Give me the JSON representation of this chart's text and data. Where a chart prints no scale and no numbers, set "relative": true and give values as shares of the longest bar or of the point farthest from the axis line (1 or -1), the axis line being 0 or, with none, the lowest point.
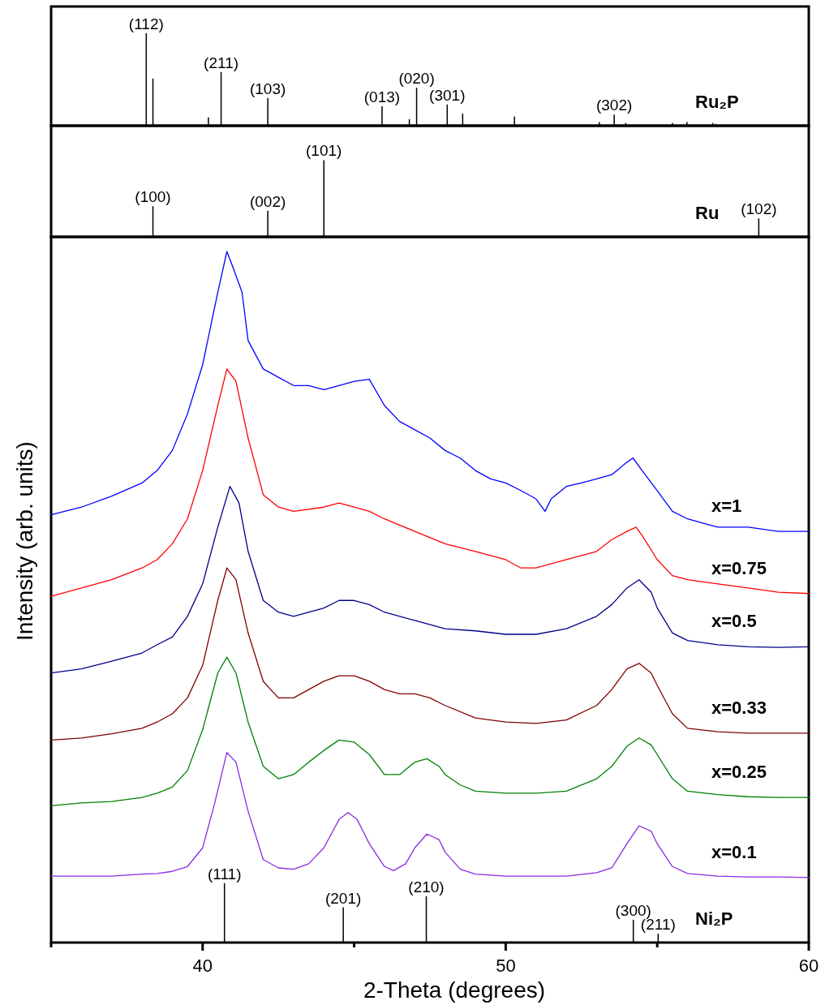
{
  "chart_data": [
    {
      "type": "bar",
      "relative": true,
      "xlim": [
        35,
        60
      ],
      "annotations": [
        {
          "text": "(112)",
          "x": 38.14,
          "y": 1
        },
        {
          "text": "(211)",
          "x": 40.61,
          "y": 0.58
        },
        {
          "text": "(103)",
          "x": 42.15,
          "y": 0.3
        },
        {
          "text": "(013)",
          "x": 45.92,
          "y": 0.21
        },
        {
          "text": "(020)",
          "x": 47.06,
          "y": 0.41
        },
        {
          "text": "(301)",
          "x": 48.07,
          "y": 0.23
        },
        {
          "text": "(302)",
          "x": 53.58,
          "y": 0.12
        }
      ],
      "series": [
        {
          "name": "Ru₂P",
          "color": "#000000",
          "x": [
            38.14,
            38.36,
            40.19,
            40.61,
            42.15,
            45.92,
            46.82,
            47.06,
            48.07,
            48.58,
            50.29,
            53.09,
            53.58,
            53.96,
            55.5,
            55.98,
            56.83,
            56.93
          ],
          "values": [
            1,
            0.51,
            0.09,
            0.58,
            0.3,
            0.21,
            0.07,
            0.41,
            0.23,
            0.13,
            0.1,
            0.04,
            0.12,
            0.03,
            0.03,
            0.04,
            0.03,
            0.02
          ]
        }
      ]
    },
    {
      "type": "bar",
      "relative": true,
      "xlim": [
        35,
        60
      ],
      "annotations": [
        {
          "text": "(100)",
          "x": 38.36,
          "y": 0.4
        },
        {
          "text": "(002)",
          "x": 42.15,
          "y": 0.34
        },
        {
          "text": "(101)",
          "x": 44.0,
          "y": 1
        },
        {
          "text": "(102)",
          "x": 58.35,
          "y": 0.24
        }
      ],
      "series": [
        {
          "name": "Ru",
          "color": "#000000",
          "x": [
            38.36,
            42.15,
            44.0,
            58.35
          ],
          "values": [
            0.4,
            0.34,
            1,
            0.24
          ]
        }
      ]
    },
    {
      "type": "line",
      "relative": true,
      "xlim": [
        35,
        60
      ],
      "xticks": [
        {
          "value": 35,
          "label": null
        },
        40,
        {
          "value": 45,
          "label": null
        },
        50,
        {
          "value": 55,
          "label": null
        },
        60
      ],
      "xlabel": "2-Theta (degrees)",
      "ylabel": "Intensity (arb. units)",
      "series": [
        {
          "name": "x=1",
          "color": "#0000ff",
          "x": [
            35,
            36,
            37,
            38,
            38.5,
            39,
            39.5,
            40,
            40.5,
            40.8,
            41,
            41.3,
            41.5,
            42,
            42.5,
            43,
            43.5,
            44,
            44.5,
            45,
            45.5,
            46,
            46.5,
            47,
            47.5,
            48,
            48.5,
            49,
            49.5,
            50,
            50.5,
            51,
            51.3,
            51.5,
            52,
            52.5,
            53,
            53.5,
            54,
            54.2,
            54.5,
            55,
            55.5,
            56,
            56.5,
            57,
            58,
            59,
            60
          ],
          "values": [
            0.619,
            0.63,
            0.646,
            0.665,
            0.683,
            0.712,
            0.765,
            0.836,
            0.941,
            1.0,
            0.977,
            0.941,
            0.871,
            0.83,
            0.818,
            0.806,
            0.806,
            0.8,
            0.806,
            0.812,
            0.815,
            0.777,
            0.754,
            0.742,
            0.73,
            0.712,
            0.701,
            0.683,
            0.671,
            0.665,
            0.654,
            0.642,
            0.624,
            0.642,
            0.66,
            0.665,
            0.671,
            0.677,
            0.695,
            0.701,
            0.683,
            0.654,
            0.624,
            0.613,
            0.607,
            0.601,
            0.601,
            0.595,
            0.595
          ]
        },
        {
          "name": "x=0.75",
          "color": "#ff0000",
          "x": [
            35,
            36,
            37,
            38,
            38.5,
            39,
            39.5,
            40,
            40.5,
            40.8,
            41.1,
            41.5,
            42,
            42.5,
            43,
            44,
            44.5,
            45,
            45.5,
            46,
            47,
            48,
            49,
            50,
            50.5,
            51,
            52,
            52.5,
            53,
            53.5,
            54,
            54.3,
            54.5,
            55,
            55.5,
            56,
            57,
            58,
            59,
            60
          ],
          "values": [
            0.501,
            0.513,
            0.525,
            0.542,
            0.554,
            0.577,
            0.613,
            0.683,
            0.777,
            0.83,
            0.812,
            0.73,
            0.648,
            0.63,
            0.624,
            0.63,
            0.636,
            0.63,
            0.624,
            0.613,
            0.595,
            0.577,
            0.566,
            0.554,
            0.542,
            0.542,
            0.554,
            0.56,
            0.566,
            0.583,
            0.595,
            0.601,
            0.589,
            0.554,
            0.531,
            0.525,
            0.519,
            0.513,
            0.507,
            0.505
          ]
        },
        {
          "name": "x=0.5",
          "color": "#00008b",
          "x": [
            35,
            36,
            37,
            38,
            38.5,
            39,
            39.5,
            40,
            40.5,
            40.9,
            41.2,
            41.5,
            42,
            42.5,
            43,
            44,
            44.5,
            45,
            45.5,
            46,
            47,
            48,
            49,
            50,
            51,
            52,
            53,
            53.5,
            54,
            54.4,
            54.8,
            55,
            55.5,
            56,
            57,
            58,
            59,
            60
          ],
          "values": [
            0.39,
            0.396,
            0.407,
            0.419,
            0.431,
            0.442,
            0.472,
            0.519,
            0.601,
            0.66,
            0.636,
            0.566,
            0.495,
            0.478,
            0.472,
            0.484,
            0.495,
            0.495,
            0.489,
            0.478,
            0.466,
            0.454,
            0.451,
            0.446,
            0.446,
            0.454,
            0.472,
            0.489,
            0.513,
            0.525,
            0.507,
            0.484,
            0.448,
            0.437,
            0.431,
            0.428,
            0.427,
            0.428
          ]
        },
        {
          "name": "x=0.33",
          "color": "#800000",
          "x": [
            35,
            36,
            37,
            38,
            38.5,
            39,
            39.5,
            40,
            40.5,
            40.8,
            41.1,
            41.5,
            42,
            42.5,
            43,
            43.5,
            44,
            44.5,
            45,
            45.5,
            46,
            46.5,
            47,
            47.5,
            48,
            49,
            50,
            51,
            52,
            53,
            53.5,
            54,
            54.4,
            54.8,
            55,
            55.5,
            56,
            57,
            58,
            59,
            60
          ],
          "values": [
            0.293,
            0.296,
            0.302,
            0.31,
            0.319,
            0.331,
            0.354,
            0.401,
            0.495,
            0.542,
            0.525,
            0.448,
            0.378,
            0.354,
            0.354,
            0.366,
            0.378,
            0.386,
            0.386,
            0.378,
            0.366,
            0.36,
            0.36,
            0.354,
            0.343,
            0.325,
            0.319,
            0.317,
            0.322,
            0.343,
            0.366,
            0.396,
            0.404,
            0.39,
            0.372,
            0.331,
            0.31,
            0.305,
            0.303,
            0.303,
            0.303
          ]
        },
        {
          "name": "x=0.25",
          "color": "#008000",
          "x": [
            35,
            36,
            37,
            38,
            38.5,
            39,
            39.5,
            40,
            40.5,
            40.8,
            41.1,
            41.5,
            42,
            42.5,
            43,
            43.5,
            44,
            44.5,
            45,
            45.5,
            46,
            46.5,
            47,
            47.4,
            47.8,
            48,
            48.5,
            49,
            50,
            51,
            52,
            53,
            53.5,
            54,
            54.4,
            54.8,
            55,
            55.5,
            56,
            57,
            58,
            59,
            60
          ],
          "values": [
            0.198,
            0.202,
            0.204,
            0.21,
            0.216,
            0.225,
            0.249,
            0.308,
            0.39,
            0.413,
            0.39,
            0.319,
            0.255,
            0.237,
            0.243,
            0.261,
            0.278,
            0.293,
            0.29,
            0.272,
            0.243,
            0.243,
            0.261,
            0.266,
            0.255,
            0.243,
            0.228,
            0.219,
            0.216,
            0.216,
            0.219,
            0.237,
            0.255,
            0.284,
            0.296,
            0.286,
            0.272,
            0.237,
            0.219,
            0.214,
            0.211,
            0.21,
            0.21
          ]
        },
        {
          "name": "x=0.1",
          "color": "#8a2be2",
          "x": [
            35,
            36,
            37,
            38,
            38.5,
            39,
            39.5,
            40,
            40.4,
            40.8,
            41.1,
            41.5,
            42,
            42.5,
            43,
            43.5,
            44,
            44.5,
            44.8,
            45.1,
            45.5,
            46,
            46.3,
            46.7,
            47,
            47.4,
            47.8,
            48,
            48.5,
            49,
            50,
            51,
            52,
            53,
            53.5,
            54,
            54.4,
            54.8,
            55,
            55.5,
            56,
            57,
            58,
            59,
            60
          ],
          "values": [
            0.096,
            0.096,
            0.096,
            0.099,
            0.1,
            0.103,
            0.11,
            0.137,
            0.202,
            0.275,
            0.261,
            0.19,
            0.12,
            0.108,
            0.106,
            0.114,
            0.137,
            0.178,
            0.188,
            0.178,
            0.143,
            0.11,
            0.104,
            0.114,
            0.137,
            0.157,
            0.149,
            0.131,
            0.106,
            0.099,
            0.096,
            0.096,
            0.096,
            0.101,
            0.108,
            0.143,
            0.169,
            0.161,
            0.143,
            0.11,
            0.1,
            0.096,
            0.095,
            0.095,
            0.094
          ]
        },
        {
          "name": "Ni₂P",
          "type": "bar",
          "color": "#000000",
          "x": [
            40.72,
            44.64,
            47.38,
            54.21,
            55.03
          ],
          "values": [
            0.086,
            0.051,
            0.067,
            0.033,
            0.013
          ]
        }
      ],
      "annotations": [
        {
          "text": "(111)",
          "x": 40.72,
          "y": 0.086
        },
        {
          "text": "(201)",
          "x": 44.64,
          "y": 0.051
        },
        {
          "text": "(210)",
          "x": 47.38,
          "y": 0.067
        },
        {
          "text": "(300)",
          "x": 54.21,
          "y": 0.033
        },
        {
          "text": "(211)",
          "x": 55.03,
          "y": 0.013
        }
      ]
    }
  ]
}
